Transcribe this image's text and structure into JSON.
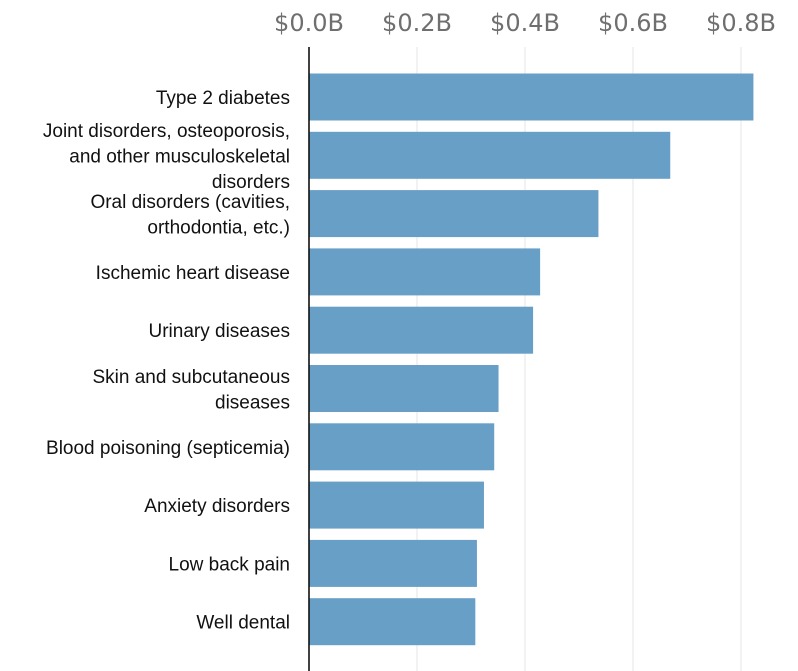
{
  "chart_data": {
    "type": "bar",
    "orientation": "horizontal",
    "title": "",
    "xlabel": "",
    "ylabel": "",
    "categories": [
      "Type 2 diabetes",
      "Joint disorders, osteoporosis, and other musculoskeletal disorders",
      "Oral disorders (cavities, orthodontia, etc.)",
      "Ischemic heart disease",
      "Urinary diseases",
      "Skin and subcutaneous diseases",
      "Blood poisoning (septicemia)",
      "Anxiety disorders",
      "Low back pain",
      "Well dental"
    ],
    "category_lines": [
      [
        "Type 2 diabetes"
      ],
      [
        "Joint disorders, osteoporosis,",
        "and other musculoskeletal",
        "disorders"
      ],
      [
        "Oral disorders (cavities,",
        "orthodontia, etc.)"
      ],
      [
        "Ischemic heart disease"
      ],
      [
        "Urinary diseases"
      ],
      [
        "Skin and subcutaneous",
        "diseases"
      ],
      [
        "Blood poisoning (septicemia)"
      ],
      [
        "Anxiety disorders"
      ],
      [
        "Low back pain"
      ],
      [
        "Well dental"
      ]
    ],
    "values": [
      0.823,
      0.669,
      0.536,
      0.428,
      0.415,
      0.351,
      0.343,
      0.324,
      0.311,
      0.308
    ],
    "unit": "billions USD",
    "xlim": [
      0,
      0.8
    ],
    "xticks": [
      0,
      0.2,
      0.4,
      0.6,
      0.8
    ],
    "xtick_labels": [
      "$0.0B",
      "$0.2B",
      "$0.4B",
      "$0.6B",
      "$0.8B"
    ],
    "xaxis_position": "top",
    "grid": true,
    "legend": "none",
    "colors": {
      "bar": "#689fc7",
      "axis": "#111111",
      "grid": "#e6e6e6",
      "tick_text": "#6f6f6f",
      "label_text": "#111111"
    }
  }
}
